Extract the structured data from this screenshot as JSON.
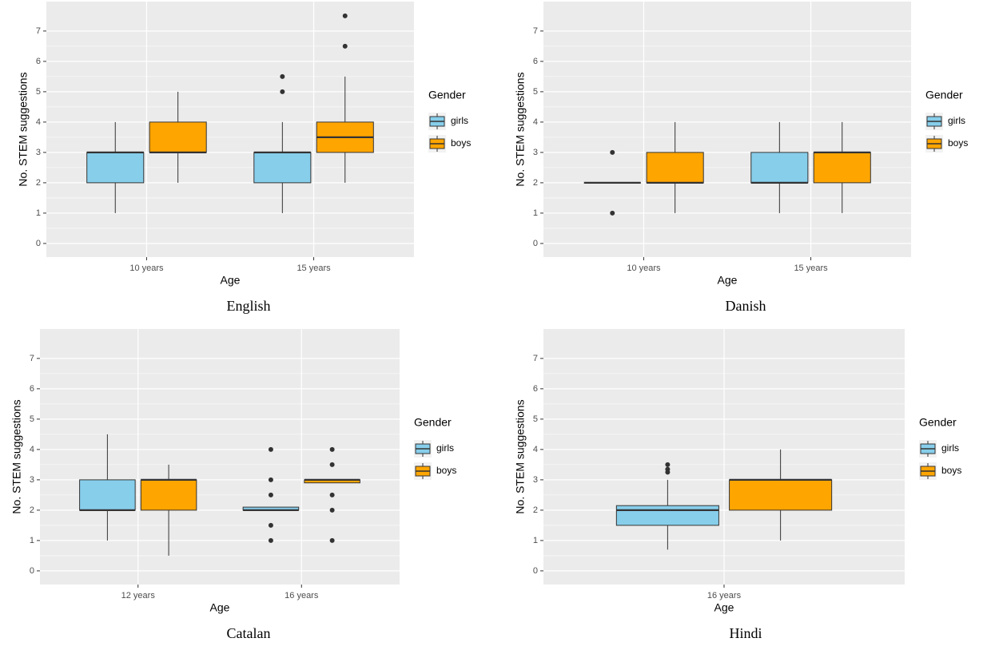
{
  "chart_data": [
    {
      "type": "box",
      "title": "English",
      "x_label": "Age",
      "y_label": "No. STEM suggestions",
      "legend_title": "Gender",
      "categories": [
        "10 years",
        "15 years"
      ],
      "ylim": [
        -0.45,
        7.97
      ],
      "yticks": [
        0,
        1,
        2,
        3,
        4,
        5,
        6,
        7
      ],
      "grid": true,
      "series": [
        {
          "name": "girls",
          "color": "#87ceeb",
          "values": [
            {
              "low": 1,
              "q1": 2,
              "median": 3,
              "q3": 3,
              "high": 4,
              "outliers": []
            },
            {
              "low": 1,
              "q1": 2,
              "median": 3,
              "q3": 3,
              "high": 4,
              "outliers": [
                5,
                5.5
              ]
            }
          ]
        },
        {
          "name": "boys",
          "color": "#ffa500",
          "values": [
            {
              "low": 2,
              "q1": 3,
              "median": 3,
              "q3": 4,
              "high": 5,
              "outliers": []
            },
            {
              "low": 2,
              "q1": 3,
              "median": 3.5,
              "q3": 4,
              "high": 5.5,
              "outliers": [
                6.5,
                7.5
              ]
            }
          ]
        }
      ]
    },
    {
      "type": "box",
      "title": "Danish",
      "x_label": "Age",
      "y_label": "No. STEM suggestions",
      "legend_title": "Gender",
      "categories": [
        "10 years",
        "15 years"
      ],
      "ylim": [
        -0.45,
        7.97
      ],
      "yticks": [
        0,
        1,
        2,
        3,
        4,
        5,
        6,
        7
      ],
      "grid": true,
      "series": [
        {
          "name": "girls",
          "color": "#87ceeb",
          "values": [
            {
              "low": 2,
              "q1": 2,
              "median": 2,
              "q3": 2,
              "high": 2,
              "outliers": [
                1,
                3
              ]
            },
            {
              "low": 1,
              "q1": 2,
              "median": 2,
              "q3": 3,
              "high": 4,
              "outliers": []
            }
          ]
        },
        {
          "name": "boys",
          "color": "#ffa500",
          "values": [
            {
              "low": 1,
              "q1": 2,
              "median": 2,
              "q3": 3,
              "high": 4,
              "outliers": []
            },
            {
              "low": 1,
              "q1": 2,
              "median": 3,
              "q3": 3,
              "high": 4,
              "outliers": []
            }
          ]
        }
      ]
    },
    {
      "type": "box",
      "title": "Catalan",
      "x_label": "Age",
      "y_label": "No. STEM suggestions",
      "legend_title": "Gender",
      "categories": [
        "12 years",
        "16 years"
      ],
      "ylim": [
        -0.45,
        7.97
      ],
      "yticks": [
        0,
        1,
        2,
        3,
        4,
        5,
        6,
        7
      ],
      "grid": true,
      "series": [
        {
          "name": "girls",
          "color": "#87ceeb",
          "values": [
            {
              "low": 1,
              "q1": 2,
              "median": 2,
              "q3": 3,
              "high": 4.5,
              "outliers": []
            },
            {
              "low": 2,
              "q1": 2,
              "median": 2,
              "q3": 2.1,
              "high": 2.1,
              "outliers": [
                1,
                1.5,
                2.5,
                3,
                4
              ]
            }
          ]
        },
        {
          "name": "boys",
          "color": "#ffa500",
          "values": [
            {
              "low": 0.5,
              "q1": 2,
              "median": 3,
              "q3": 3,
              "high": 3.5,
              "outliers": []
            },
            {
              "low": 2.9,
              "q1": 2.9,
              "median": 3,
              "q3": 3,
              "high": 3,
              "outliers": [
                1,
                2,
                2.5,
                3.5,
                4
              ]
            }
          ]
        }
      ]
    },
    {
      "type": "box",
      "title": "Hindi",
      "x_label": "Age",
      "y_label": "No. STEM suggestions",
      "legend_title": "Gender",
      "categories": [
        "16 years"
      ],
      "ylim": [
        -0.45,
        7.97
      ],
      "yticks": [
        0,
        1,
        2,
        3,
        4,
        5,
        6,
        7
      ],
      "grid": true,
      "series": [
        {
          "name": "girls",
          "color": "#87ceeb",
          "values": [
            {
              "low": 0.7,
              "q1": 1.5,
              "median": 2,
              "q3": 2.15,
              "high": 3,
              "outliers": [
                3.25,
                3.35,
                3.5
              ]
            }
          ]
        },
        {
          "name": "boys",
          "color": "#ffa500",
          "values": [
            {
              "low": 1,
              "q1": 2,
              "median": 3,
              "q3": 3,
              "high": 4,
              "outliers": []
            }
          ]
        }
      ]
    }
  ]
}
